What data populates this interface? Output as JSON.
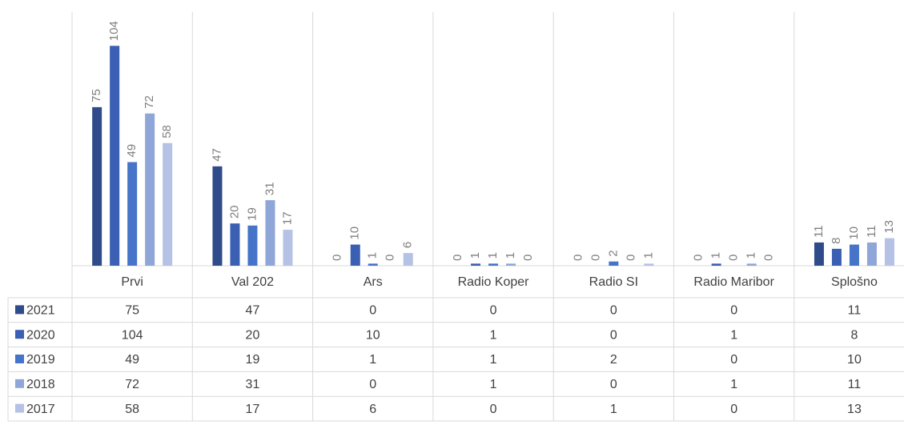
{
  "chart_data": {
    "type": "bar",
    "categories": [
      "Prvi",
      "Val 202",
      "Ars",
      "Radio Koper",
      "Radio SI",
      "Radio Maribor",
      "Splošno"
    ],
    "series": [
      {
        "name": "2021",
        "color": "#2f4b89",
        "values": [
          75,
          47,
          0,
          0,
          0,
          0,
          11
        ]
      },
      {
        "name": "2020",
        "color": "#3a5fb3",
        "values": [
          104,
          20,
          10,
          1,
          0,
          1,
          8
        ]
      },
      {
        "name": "2019",
        "color": "#4574c8",
        "values": [
          49,
          19,
          1,
          1,
          2,
          0,
          10
        ]
      },
      {
        "name": "2018",
        "color": "#8fa6d9",
        "values": [
          72,
          31,
          0,
          1,
          0,
          1,
          11
        ]
      },
      {
        "name": "2017",
        "color": "#b5c2e5",
        "values": [
          58,
          17,
          6,
          0,
          1,
          0,
          13
        ]
      }
    ],
    "ylim": [
      0,
      120
    ]
  }
}
